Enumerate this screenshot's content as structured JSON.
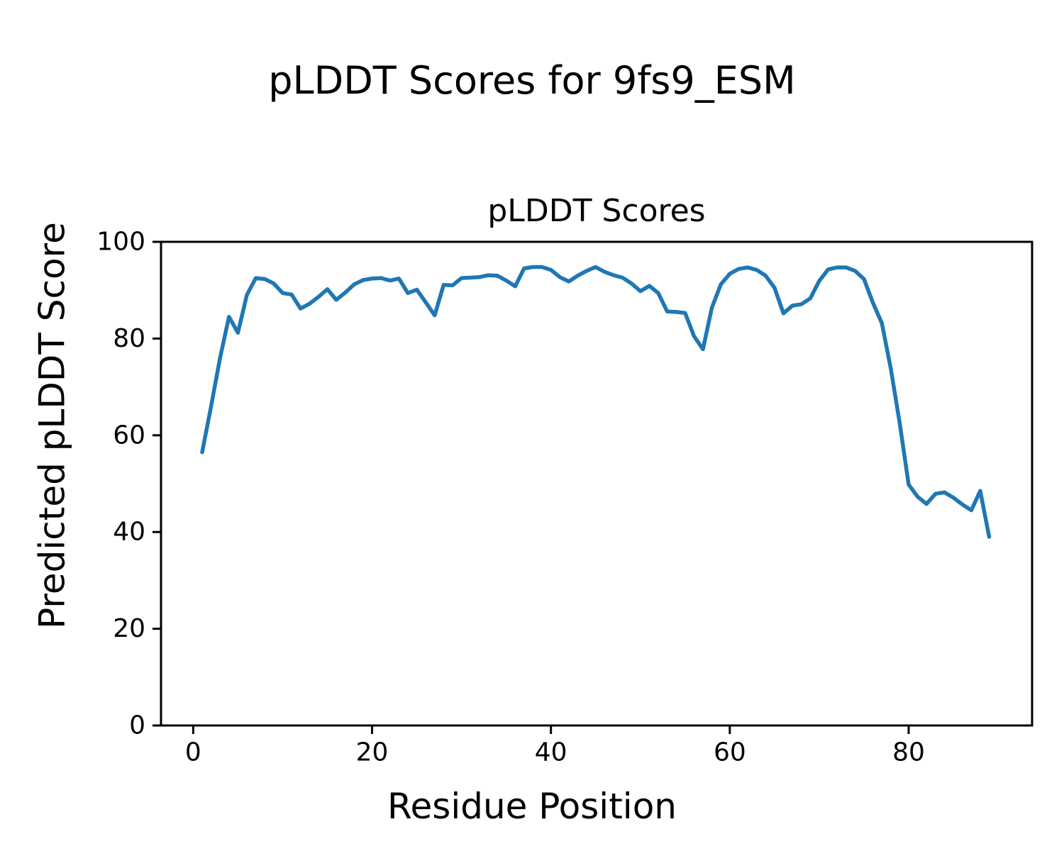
{
  "chart_data": {
    "type": "line",
    "suptitle": "pLDDT Scores for 9fs9_ESM",
    "title": "pLDDT Scores",
    "xlabel": "Residue Position",
    "ylabel": "Predicted pLDDT Score",
    "legend": null,
    "grid": false,
    "line_color": "#1f77b4",
    "line_width": 5.5,
    "xlim": [
      -3.6,
      93.8
    ],
    "ylim": [
      0,
      100
    ],
    "xticks": [
      0,
      20,
      40,
      60,
      80
    ],
    "yticks": [
      0,
      20,
      40,
      60,
      80,
      100
    ],
    "x": [
      1,
      2,
      3,
      4,
      5,
      6,
      7,
      8,
      9,
      10,
      11,
      12,
      13,
      14,
      15,
      16,
      17,
      18,
      19,
      20,
      21,
      22,
      23,
      24,
      25,
      26,
      27,
      28,
      29,
      30,
      31,
      32,
      33,
      34,
      35,
      36,
      37,
      38,
      39,
      40,
      41,
      42,
      43,
      44,
      45,
      46,
      47,
      48,
      49,
      50,
      51,
      52,
      53,
      54,
      55,
      56,
      57,
      58,
      59,
      60,
      61,
      62,
      63,
      64,
      65,
      66,
      67,
      68,
      69,
      70,
      71,
      72,
      73,
      74,
      75,
      76,
      77,
      78,
      79,
      80,
      81,
      82,
      83,
      84,
      85,
      86,
      87,
      88,
      89
    ],
    "y": [
      56.5,
      66.0,
      76.0,
      84.5,
      81.2,
      89.0,
      92.5,
      92.3,
      91.4,
      89.4,
      89.1,
      86.2,
      87.2,
      88.6,
      90.2,
      88.0,
      89.5,
      91.2,
      92.1,
      92.4,
      92.5,
      92.0,
      92.4,
      89.4,
      90.1,
      87.5,
      84.8,
      91.1,
      91.0,
      92.5,
      92.6,
      92.7,
      93.1,
      93.0,
      92.0,
      90.8,
      94.5,
      94.8,
      94.8,
      94.2,
      92.7,
      91.8,
      93.0,
      94.0,
      94.8,
      93.8,
      93.1,
      92.6,
      91.4,
      89.8,
      90.9,
      89.4,
      85.6,
      85.5,
      85.3,
      80.5,
      77.8,
      86.4,
      91.2,
      93.4,
      94.4,
      94.7,
      94.2,
      93.0,
      90.5,
      85.2,
      86.8,
      87.1,
      88.3,
      91.9,
      94.3,
      94.7,
      94.7,
      94.0,
      92.3,
      87.4,
      83.2,
      73.8,
      62.5,
      49.8,
      47.3,
      45.8,
      47.9,
      48.2,
      47.1,
      45.7,
      44.5,
      48.5,
      39.0
    ]
  }
}
